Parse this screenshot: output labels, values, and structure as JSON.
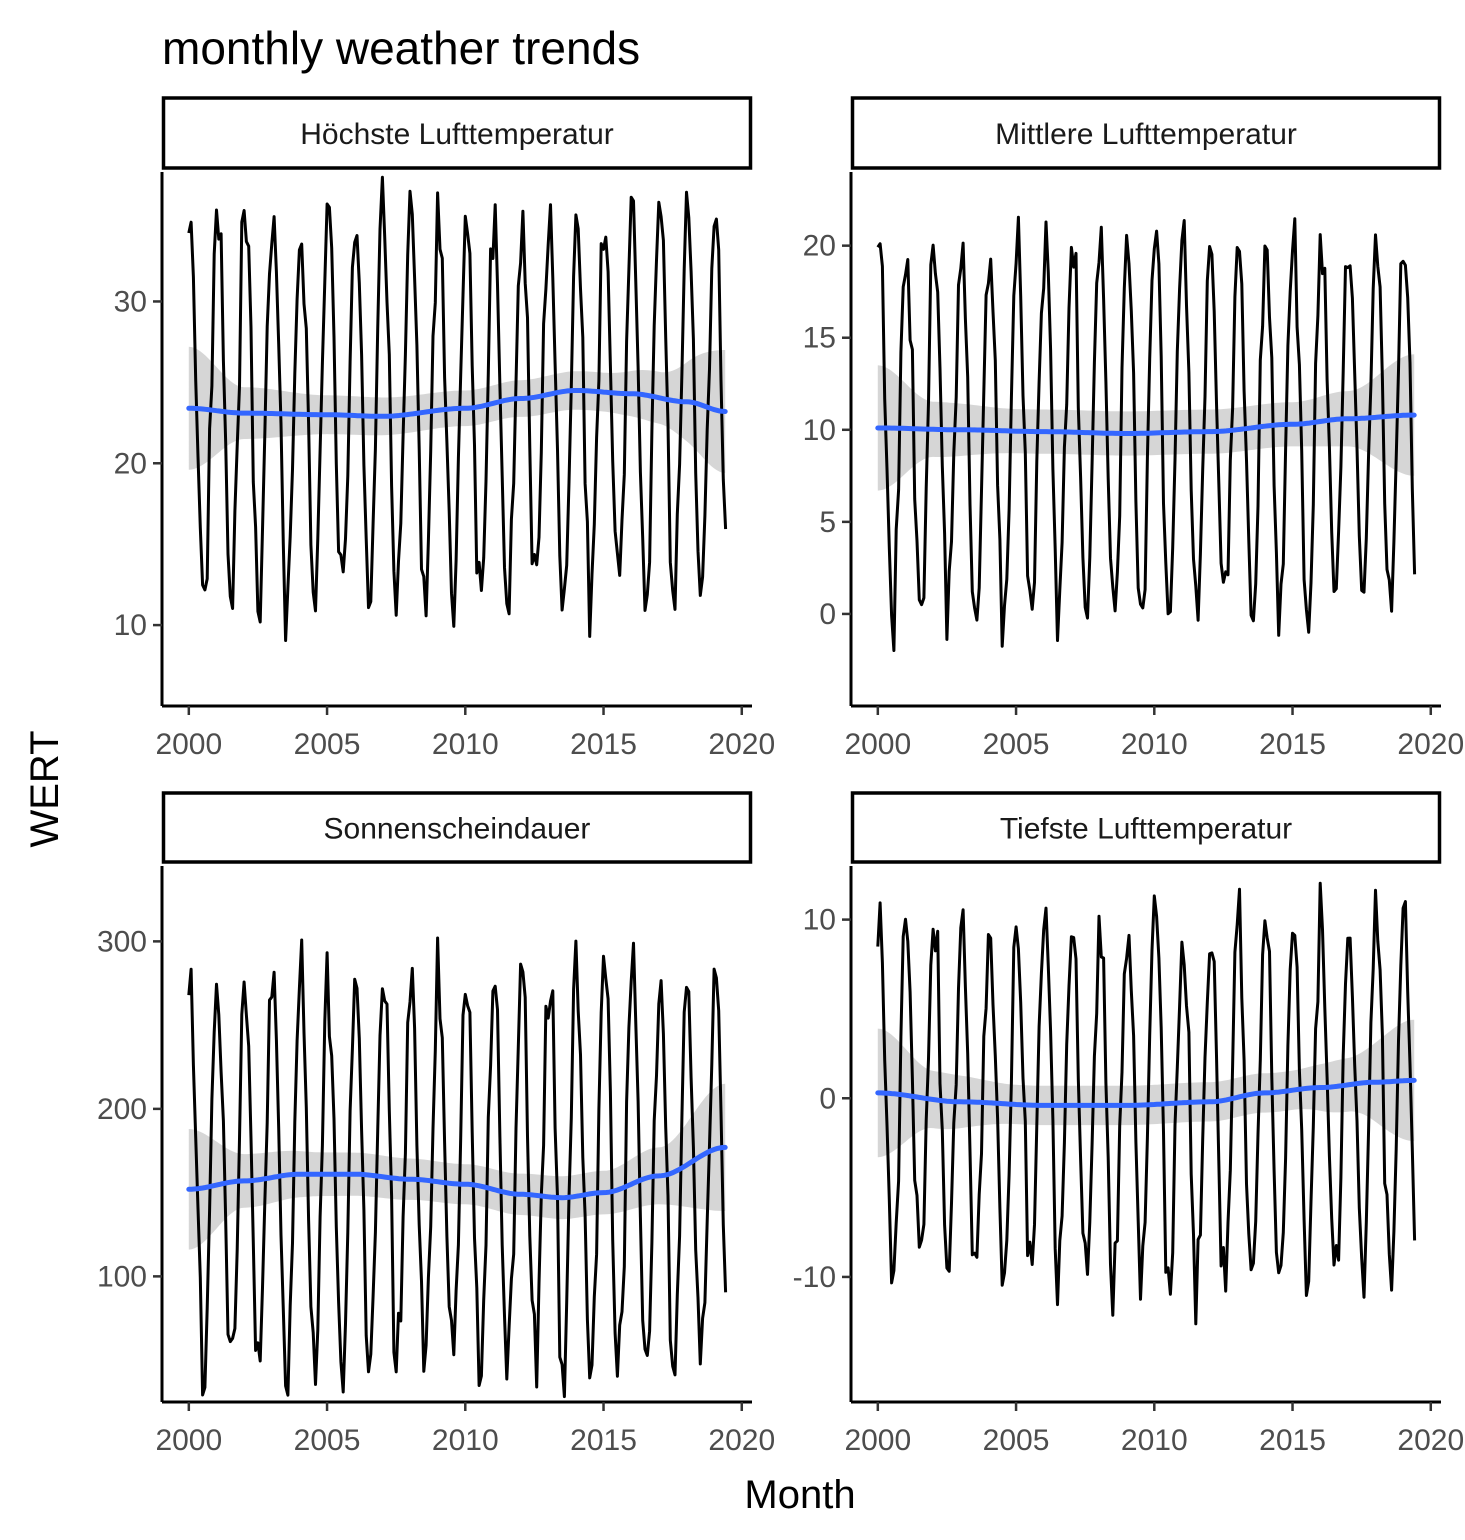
{
  "chart_data": {
    "type": "line",
    "title": "monthly weather trends",
    "xlabel": "Month",
    "ylabel": "WERT",
    "x_ticks": [
      "2000",
      "2005",
      "2010",
      "2015",
      "2020"
    ],
    "x_range": [
      2000.0,
      2019.4
    ],
    "colors": {
      "series": "#000000",
      "trend": "#3366FF",
      "ribbon": "#999999"
    },
    "panels": [
      {
        "name": "Höchste Lufttemperatur",
        "ylim": [
          5,
          38
        ],
        "y_ticks": [
          "10",
          "20",
          "30"
        ],
        "y_tick_values": [
          10,
          20,
          30
        ],
        "amplitude": [
          11,
          13
        ],
        "mean": 23.5,
        "smooth": {
          "x": [
            2000,
            2002,
            2005,
            2007,
            2010,
            2012,
            2014,
            2016,
            2018,
            2019.4
          ],
          "y": [
            23.4,
            23.1,
            23.0,
            22.9,
            23.4,
            24.0,
            24.5,
            24.3,
            23.8,
            23.2
          ]
        },
        "ribbon_halfwidth": {
          "x": [
            2000,
            2002,
            2005,
            2010,
            2015,
            2017,
            2019.4
          ],
          "y": [
            3.8,
            1.6,
            1.2,
            1.1,
            1.2,
            1.6,
            3.8
          ]
        }
      },
      {
        "name": "Mittlere Lufttemperatur",
        "ylim": [
          -5,
          24
        ],
        "y_ticks": [
          "0",
          "5",
          "10",
          "15",
          "20"
        ],
        "y_tick_values": [
          0,
          5,
          10,
          15,
          20
        ],
        "amplitude": [
          9,
          11
        ],
        "mean": 10,
        "smooth": {
          "x": [
            2000,
            2003,
            2006,
            2009,
            2012,
            2015,
            2017,
            2019.4
          ],
          "y": [
            10.1,
            10.0,
            9.9,
            9.8,
            9.9,
            10.3,
            10.6,
            10.8
          ]
        },
        "ribbon_halfwidth": {
          "x": [
            2000,
            2002,
            2005,
            2010,
            2015,
            2017,
            2019.4
          ],
          "y": [
            3.4,
            1.5,
            1.2,
            1.2,
            1.2,
            1.5,
            3.3
          ]
        }
      },
      {
        "name": "Sonnenscheindauer",
        "ylim": [
          25,
          345
        ],
        "y_ticks": [
          "100",
          "200",
          "300"
        ],
        "y_tick_values": [
          100,
          200,
          300
        ],
        "amplitude": [
          100,
          130
        ],
        "mean": 160,
        "smooth": {
          "x": [
            2000,
            2002,
            2004,
            2006,
            2008,
            2010,
            2012,
            2013.5,
            2015,
            2017,
            2019.4
          ],
          "y": [
            152,
            157,
            161,
            161,
            158,
            155,
            149,
            147,
            150,
            160,
            177
          ]
        },
        "ribbon_halfwidth": {
          "x": [
            2000,
            2002,
            2005,
            2010,
            2015,
            2017,
            2019.4
          ],
          "y": [
            36,
            16,
            13,
            12,
            13,
            17,
            38
          ]
        }
      },
      {
        "name": "Tiefste Lufttemperatur",
        "ylim": [
          -17,
          13
        ],
        "y_ticks": [
          "-10",
          "0",
          "10"
        ],
        "y_tick_values": [
          -10,
          0,
          10
        ],
        "amplitude": [
          9,
          11
        ],
        "mean": -0.2,
        "smooth": {
          "x": [
            2000,
            2003,
            2006,
            2009,
            2012,
            2014,
            2016,
            2018,
            2019.4
          ],
          "y": [
            0.3,
            -0.2,
            -0.4,
            -0.4,
            -0.2,
            0.3,
            0.6,
            0.9,
            1.0
          ]
        },
        "ribbon_halfwidth": {
          "x": [
            2000,
            2002,
            2005,
            2010,
            2015,
            2017,
            2019.4
          ],
          "y": [
            3.6,
            1.6,
            1.1,
            1.1,
            1.1,
            1.5,
            3.4
          ]
        }
      }
    ]
  }
}
